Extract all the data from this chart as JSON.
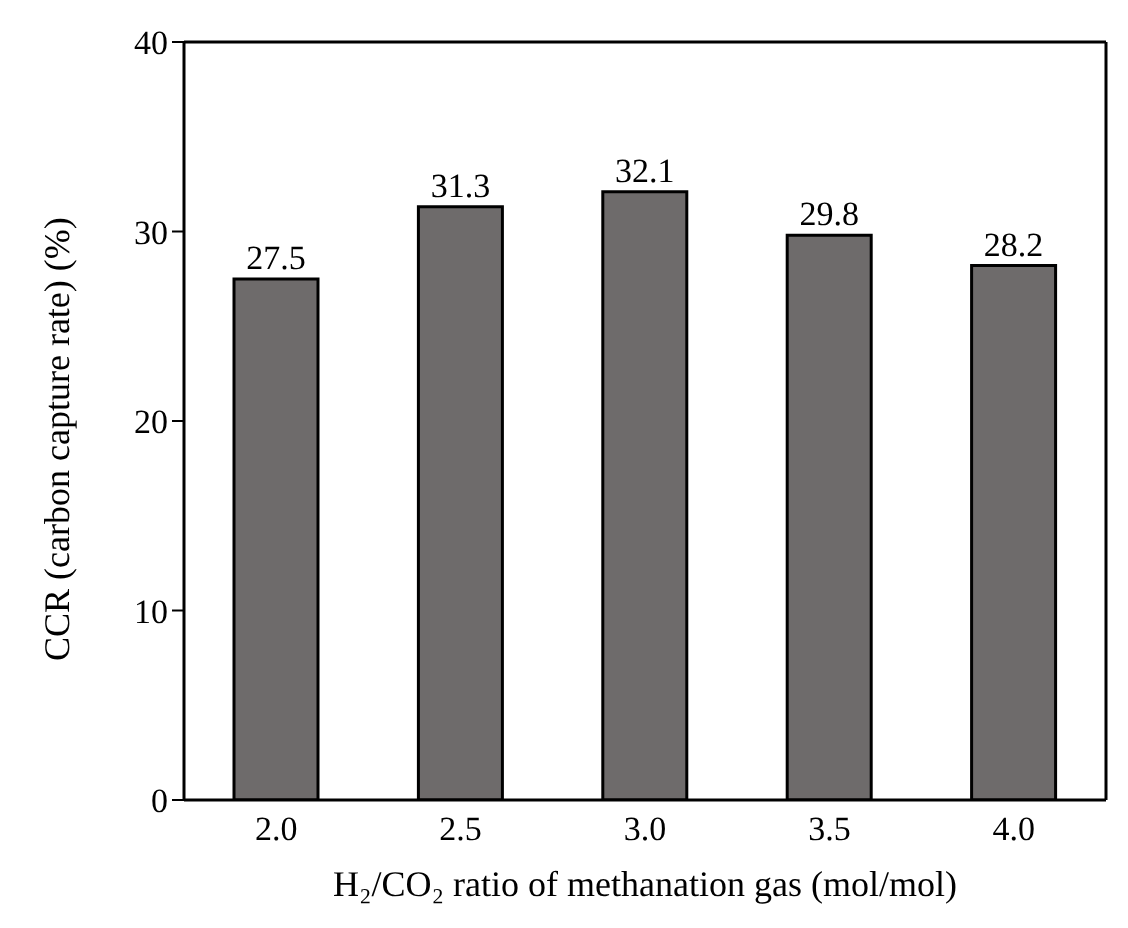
{
  "chart_data": {
    "type": "bar",
    "categories": [
      "2.0",
      "2.5",
      "3.0",
      "3.5",
      "4.0"
    ],
    "values": [
      27.5,
      31.3,
      32.1,
      29.8,
      28.2
    ],
    "color": "#6e6b6b",
    "xlabel": "H₂/CO₂ ratio of methanation gas (mol/mol)",
    "ylabel": "CCR (carbon capture rate) (%)",
    "ylim": [
      0,
      40
    ],
    "yticks": [
      0,
      10,
      20,
      30,
      40
    ],
    "data_labels": true,
    "grid": false
  }
}
